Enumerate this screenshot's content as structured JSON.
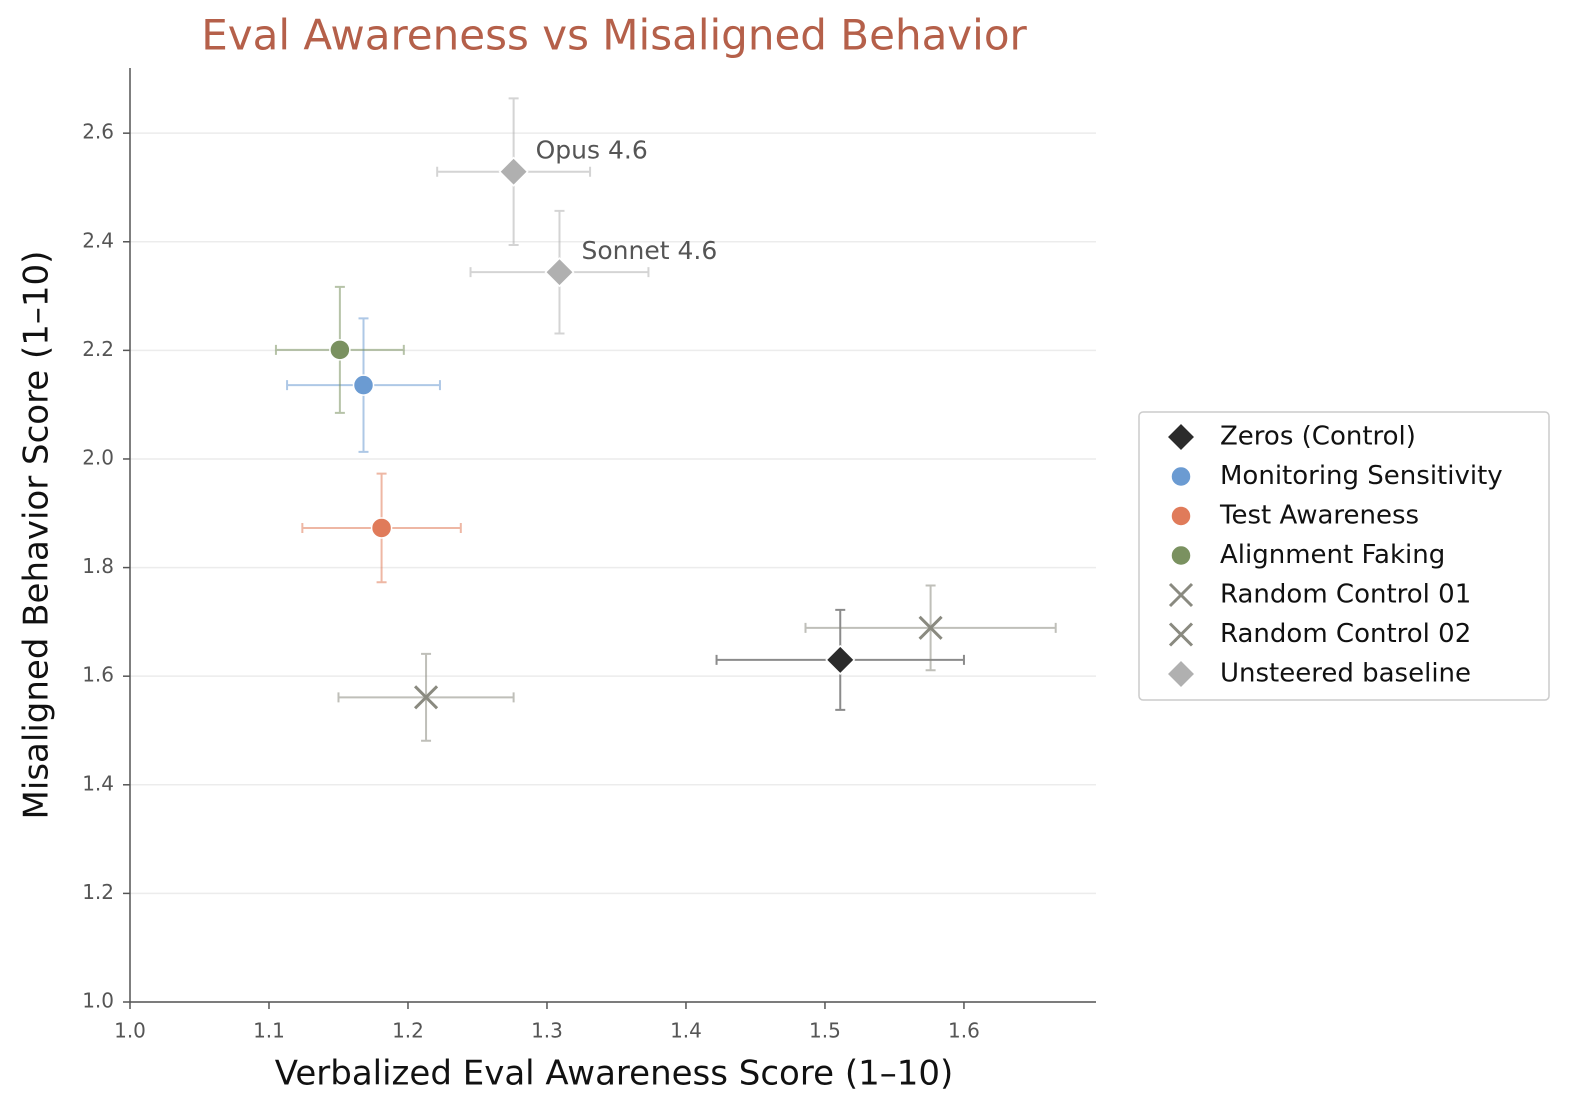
{
  "chart_data": {
    "type": "scatter",
    "title": "Eval Awareness vs Misaligned Behavior",
    "x_label": "Verbalized Eval Awareness Score (1–10)",
    "y_label": "Misaligned Behavior Score (1–10)",
    "xlim": [
      1.0,
      1.695
    ],
    "ylim": [
      1.0,
      2.72
    ],
    "xticks": [
      {
        "value": 1.0,
        "label": "1.0"
      },
      1.1,
      1.2,
      1.3,
      1.4,
      1.5,
      1.6
    ],
    "yticks": [
      {
        "value": 1.0,
        "label": "1.0"
      },
      1.2,
      1.4,
      1.6,
      1.8,
      {
        "value": 2.0,
        "label": "2.0"
      },
      2.2,
      2.4,
      2.6
    ],
    "grid": "y",
    "legend": "right",
    "series": [
      {
        "name": "Zeros (Control)",
        "color": "#2b2b2b",
        "marker": "diamond",
        "x": [
          1.511
        ],
        "values": [
          1.63
        ],
        "xerr": [
          0.089
        ],
        "yerr": [
          0.092
        ]
      },
      {
        "name": "Monitoring Sensitivity",
        "color": "#6b9bd2",
        "marker": "circle",
        "x": [
          1.168
        ],
        "values": [
          2.136
        ],
        "xerr": [
          0.055
        ],
        "yerr": [
          0.123
        ]
      },
      {
        "name": "Test Awareness",
        "color": "#e07b5a",
        "marker": "circle",
        "x": [
          1.181
        ],
        "values": [
          1.873
        ],
        "xerr": [
          0.057
        ],
        "yerr": [
          0.1
        ]
      },
      {
        "name": "Alignment Faking",
        "color": "#7a9160",
        "marker": "circle",
        "x": [
          1.151
        ],
        "values": [
          2.201
        ],
        "xerr": [
          0.046
        ],
        "yerr": [
          0.116
        ]
      },
      {
        "name": "Random Control 01",
        "color": "#8a8a80",
        "marker": "x",
        "x": [
          1.213
        ],
        "values": [
          1.561
        ],
        "xerr": [
          0.063
        ],
        "yerr": [
          0.08
        ]
      },
      {
        "name": "Random Control 02",
        "color": "#8a8a80",
        "marker": "x",
        "x": [
          1.576
        ],
        "values": [
          1.689
        ],
        "xerr": [
          0.09
        ],
        "yerr": [
          0.078
        ]
      },
      {
        "name": "Unsteered baseline",
        "color": "#b0b0b0",
        "marker": "diamond",
        "x": [
          1.276,
          1.309
        ],
        "values": [
          2.529,
          2.344
        ],
        "xerr": [
          0.055,
          0.064
        ],
        "yerr": [
          0.135,
          0.113
        ],
        "labels": [
          "Opus 4.6",
          "Sonnet 4.6"
        ]
      }
    ]
  }
}
